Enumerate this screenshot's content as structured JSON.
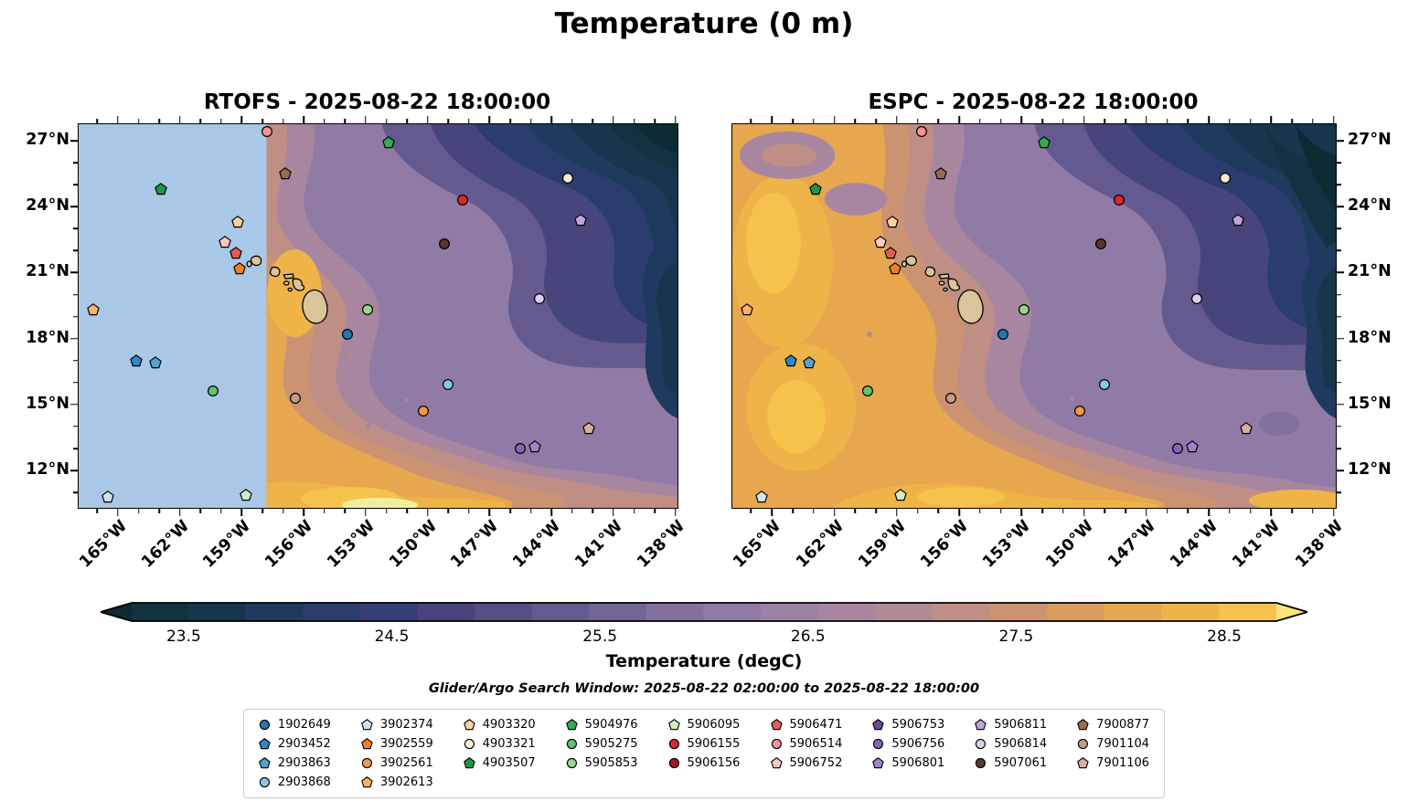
{
  "figure": {
    "title": "Temperature (0 m)",
    "search_window": "Glider/Argo Search Window: 2025-08-22 02:00:00 to 2025-08-22 18:00:00"
  },
  "chart_data": {
    "type": "heatmap",
    "subtype": "two-panel filled-contour sea surface temperature maps around Hawaii with Glider/Argo float markers",
    "panels": [
      {
        "name": "RTOFS",
        "title": "RTOFS - 2025-08-22 18:00:00",
        "masked_region_west_of_lon_w": 157.8
      },
      {
        "name": "ESPC",
        "title": "ESPC - 2025-08-22 18:00:00"
      }
    ],
    "x_axis": {
      "unit": "°W",
      "tick_values": [
        165,
        162,
        159,
        156,
        153,
        150,
        147,
        144,
        141,
        138
      ],
      "extent_west_east": [
        166.9,
        137.9
      ]
    },
    "y_axis": {
      "unit": "°N",
      "tick_values": [
        27,
        24,
        21,
        18,
        15,
        12
      ],
      "extent_north_south": [
        27.75,
        10.3
      ]
    },
    "colorbar": {
      "label": "Temperature (degC)",
      "tick_values": [
        23.5,
        24.5,
        25.5,
        26.5,
        27.5,
        28.5
      ],
      "vmin": 23.25,
      "vmax": 28.75,
      "extend": "both",
      "colors": [
        "#0c2b33",
        "#113240",
        "#16364e",
        "#1e3a5e",
        "#2a3d6c",
        "#383f76",
        "#46467d",
        "#555083",
        "#645a8d",
        "#736597",
        "#82709f",
        "#907ba6",
        "#9d82a7",
        "#a886a0",
        "#b38a94",
        "#bf8e85",
        "#cc9372",
        "#da9c5f",
        "#e6a74f",
        "#efb447",
        "#f5c24c",
        "#fae47c"
      ]
    },
    "mask_color": "#a9c7e6",
    "land_color": "#d9c49b",
    "floats": [
      {
        "id": "1902649",
        "shape": "circle",
        "color": "#2676b0",
        "lon_w": 153.9,
        "lat_n": 18.2
      },
      {
        "id": "2903452",
        "shape": "pentagon",
        "color": "#2f87c3",
        "lon_w": 164.1,
        "lat_n": 17.0
      },
      {
        "id": "2903863",
        "shape": "pentagon",
        "color": "#57a0ce",
        "lon_w": 163.2,
        "lat_n": 16.9
      },
      {
        "id": "2903868",
        "shape": "circle",
        "color": "#8ec4e4",
        "lon_w": 149.0,
        "lat_n": 15.9
      },
      {
        "id": "3902374",
        "shape": "pentagon",
        "color": "#cfe3f2",
        "lon_w": 165.5,
        "lat_n": 10.8
      },
      {
        "id": "3902559",
        "shape": "pentagon",
        "color": "#ef8023",
        "lon_w": 159.1,
        "lat_n": 21.2
      },
      {
        "id": "3902561",
        "shape": "circle",
        "color": "#f79646",
        "lon_w": 150.2,
        "lat_n": 14.7
      },
      {
        "id": "3902613",
        "shape": "pentagon",
        "color": "#fbb264",
        "lon_w": 166.2,
        "lat_n": 19.3
      },
      {
        "id": "4903320",
        "shape": "pentagon",
        "color": "#fdd0a0",
        "lon_w": 159.2,
        "lat_n": 23.3
      },
      {
        "id": "4903321",
        "shape": "circle",
        "color": "#fcecd4",
        "lon_w": 143.2,
        "lat_n": 25.3
      },
      {
        "id": "4903507",
        "shape": "pentagon",
        "color": "#1e9642",
        "lon_w": 162.9,
        "lat_n": 24.8
      },
      {
        "id": "5904976",
        "shape": "pentagon",
        "color": "#33ad4e",
        "lon_w": 151.9,
        "lat_n": 26.9
      },
      {
        "id": "5905275",
        "shape": "circle",
        "color": "#5fc46d",
        "lon_w": 160.4,
        "lat_n": 15.6
      },
      {
        "id": "5905853",
        "shape": "circle",
        "color": "#95d98f",
        "lon_w": 152.9,
        "lat_n": 19.3
      },
      {
        "id": "5906095",
        "shape": "pentagon",
        "color": "#cdeec3",
        "lon_w": 158.8,
        "lat_n": 10.9
      },
      {
        "id": "5906155",
        "shape": "circle",
        "color": "#da2a2a",
        "lon_w": 148.3,
        "lat_n": 24.3
      },
      {
        "id": "5906156",
        "shape": "circle",
        "color": "#a5161d",
        "lon_w": null,
        "lat_n": null
      },
      {
        "id": "5906471",
        "shape": "pentagon",
        "color": "#e35d57",
        "lon_w": 159.3,
        "lat_n": 21.9
      },
      {
        "id": "5906514",
        "shape": "circle",
        "color": "#f29491",
        "lon_w": 157.8,
        "lat_n": 27.4
      },
      {
        "id": "5906752",
        "shape": "pentagon",
        "color": "#fac8c4",
        "lon_w": 159.8,
        "lat_n": 22.4
      },
      {
        "id": "5906753",
        "shape": "pentagon",
        "color": "#69489d",
        "lon_w": null,
        "lat_n": null
      },
      {
        "id": "5906756",
        "shape": "circle",
        "color": "#8763ba",
        "lon_w": 145.5,
        "lat_n": 13.0
      },
      {
        "id": "5906801",
        "shape": "pentagon",
        "color": "#a183cd",
        "lon_w": 144.8,
        "lat_n": 13.1
      },
      {
        "id": "5906811",
        "shape": "pentagon",
        "color": "#bfa3dc",
        "lon_w": 142.6,
        "lat_n": 23.4
      },
      {
        "id": "5906814",
        "shape": "circle",
        "color": "#ddcdec",
        "lon_w": 144.6,
        "lat_n": 19.8
      },
      {
        "id": "5907061",
        "shape": "circle",
        "color": "#59382b",
        "lon_w": 149.2,
        "lat_n": 22.3
      },
      {
        "id": "7900877",
        "shape": "pentagon",
        "color": "#9b6b50",
        "lon_w": 156.9,
        "lat_n": 25.5
      },
      {
        "id": "7901104",
        "shape": "circle",
        "color": "#c39b8b",
        "lon_w": 156.4,
        "lat_n": 15.3
      },
      {
        "id": "7901106",
        "shape": "pentagon",
        "color": "#d9ad9f",
        "lon_w": 142.2,
        "lat_n": 13.9
      }
    ]
  }
}
